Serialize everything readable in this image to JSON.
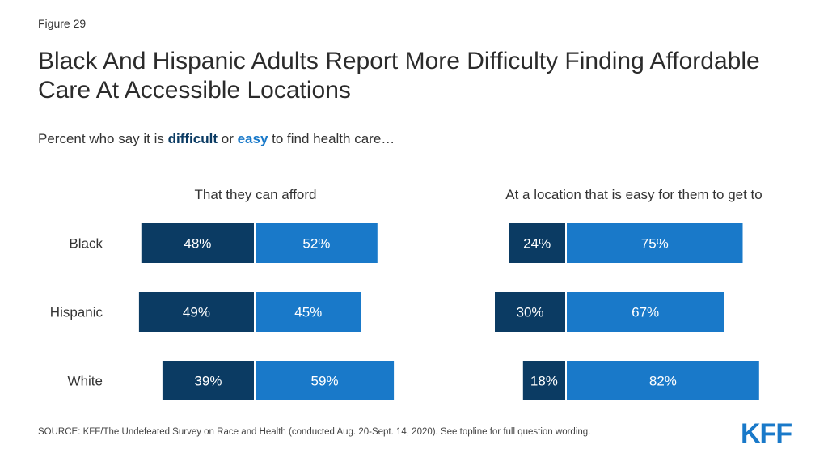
{
  "figure_label": "Figure 29",
  "title": "Black And Hispanic Adults Report More Difficulty Finding Affordable Care At Accessible Locations",
  "subtitle": {
    "prefix": "Percent who say it is ",
    "difficult": "difficult",
    "middle": " or ",
    "easy": "easy",
    "suffix": " to find health care…"
  },
  "colors": {
    "difficult": "#0b3b63",
    "easy": "#1979c9"
  },
  "source": "SOURCE: KFF/The Undefeated Survey on Race and Health (conducted Aug. 20-Sept. 14, 2020). See topline for full question wording.",
  "logo_text": "KFF",
  "chart_data": [
    {
      "type": "bar",
      "title": "That they can afford",
      "categories": [
        "Black",
        "Hispanic",
        "White"
      ],
      "series": [
        {
          "name": "difficult",
          "values": [
            48,
            49,
            39
          ]
        },
        {
          "name": "easy",
          "values": [
            52,
            45,
            59
          ]
        }
      ]
    },
    {
      "type": "bar",
      "title": "At a location that is easy for them to get to",
      "categories": [
        "Black",
        "Hispanic",
        "White"
      ],
      "series": [
        {
          "name": "difficult",
          "values": [
            24,
            30,
            18
          ]
        },
        {
          "name": "easy",
          "values": [
            75,
            67,
            82
          ]
        }
      ]
    }
  ]
}
